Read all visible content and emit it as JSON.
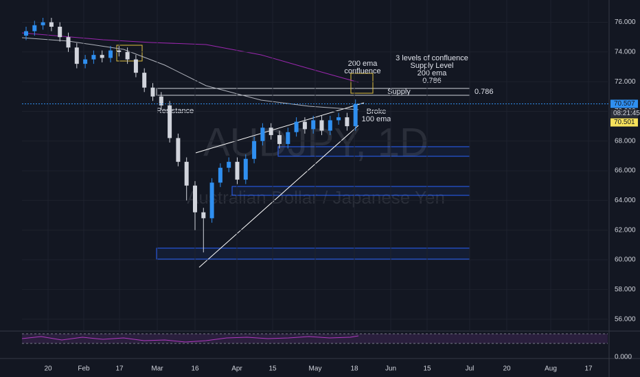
{
  "chart_data": {
    "type": "candlestick",
    "watermark_symbol": "AUDJPY, 1D",
    "watermark_name": "Australian Dollar / Japanese Yen",
    "up_color": "#2f8ff0",
    "down_color": "#d1d4dc",
    "open": [
      75.1,
      75.4,
      75.8,
      76.0,
      75.7,
      75.0,
      74.3,
      73.2,
      73.5,
      73.8,
      73.6,
      74.1,
      74.0,
      73.5,
      72.6,
      71.6,
      71.0,
      70.4,
      68.2,
      66.6,
      65.0,
      63.2,
      62.8,
      65.2,
      66.2,
      66.6,
      65.4,
      66.8,
      68.0,
      68.9,
      68.4,
      67.8,
      68.6,
      69.3,
      68.8,
      69.4,
      68.7,
      69.4,
      69.6,
      69.0
    ],
    "high": [
      75.7,
      76.1,
      76.3,
      76.3,
      76.0,
      75.3,
      74.6,
      73.8,
      74.1,
      74.1,
      74.4,
      74.4,
      74.3,
      73.8,
      72.9,
      71.9,
      71.3,
      70.7,
      68.5,
      66.9,
      65.3,
      63.5,
      65.5,
      66.5,
      66.9,
      66.9,
      67.1,
      68.3,
      69.2,
      69.2,
      68.7,
      68.9,
      69.6,
      69.6,
      69.7,
      69.7,
      69.7,
      69.9,
      69.9,
      70.8
    ],
    "low": [
      74.8,
      75.1,
      75.5,
      75.4,
      74.7,
      74.0,
      72.9,
      72.9,
      73.2,
      73.3,
      73.3,
      73.7,
      73.2,
      72.3,
      71.3,
      70.7,
      70.1,
      67.9,
      66.3,
      64.0,
      62.0,
      60.5,
      62.5,
      64.9,
      65.9,
      65.1,
      65.1,
      66.5,
      67.7,
      68.1,
      67.5,
      67.5,
      68.3,
      68.5,
      68.5,
      68.4,
      68.4,
      69.1,
      68.7,
      68.7
    ],
    "close": [
      75.4,
      75.8,
      76.0,
      75.7,
      75.0,
      74.3,
      73.2,
      73.5,
      73.8,
      73.6,
      74.1,
      74.0,
      73.5,
      72.6,
      71.6,
      71.0,
      70.4,
      68.2,
      66.6,
      65.0,
      63.2,
      62.8,
      65.2,
      66.2,
      66.6,
      65.4,
      66.8,
      68.0,
      68.9,
      68.4,
      67.8,
      68.6,
      69.3,
      68.8,
      69.4,
      68.7,
      69.4,
      69.6,
      69.0,
      70.5
    ],
    "ylim": [
      55.2,
      77.5
    ],
    "yticks": [
      {
        "value": 76,
        "label": "76.000"
      },
      {
        "value": 74,
        "label": "74.000"
      },
      {
        "value": 72,
        "label": "72.000"
      },
      {
        "value": 70,
        "label": "70.000"
      },
      {
        "value": 68,
        "label": "68.000"
      },
      {
        "value": 66,
        "label": "66.000"
      },
      {
        "value": 64,
        "label": "64.000"
      },
      {
        "value": 62,
        "label": "62.000"
      },
      {
        "value": 60,
        "label": "60.000"
      },
      {
        "value": 58,
        "label": "58.000"
      },
      {
        "value": 56,
        "label": "56.000"
      }
    ],
    "xticks": [
      "20",
      "Feb",
      "17",
      "Mar",
      "16",
      "Apr",
      "15",
      "May",
      "18",
      "Jun",
      "15",
      "Jul",
      "20",
      "Aug",
      "17"
    ],
    "last_price": {
      "value": 70.507,
      "label": "70.507"
    },
    "countdown": "08:21:45",
    "bid_price": {
      "value": 70.501,
      "label": "70.501"
    },
    "rsi_tick": {
      "value": 0,
      "label": "0.000"
    },
    "annotations": {
      "ema200_confluence": [
        "200 ema",
        "confluence"
      ],
      "confluence_list": [
        "3 levels of confluence",
        "Supply Level",
        "200 ema",
        "0.786"
      ],
      "supply": "Supply",
      "fib": "0.786",
      "resistance": "Resistance",
      "broke": [
        "Broke",
        "100 ema"
      ]
    }
  }
}
